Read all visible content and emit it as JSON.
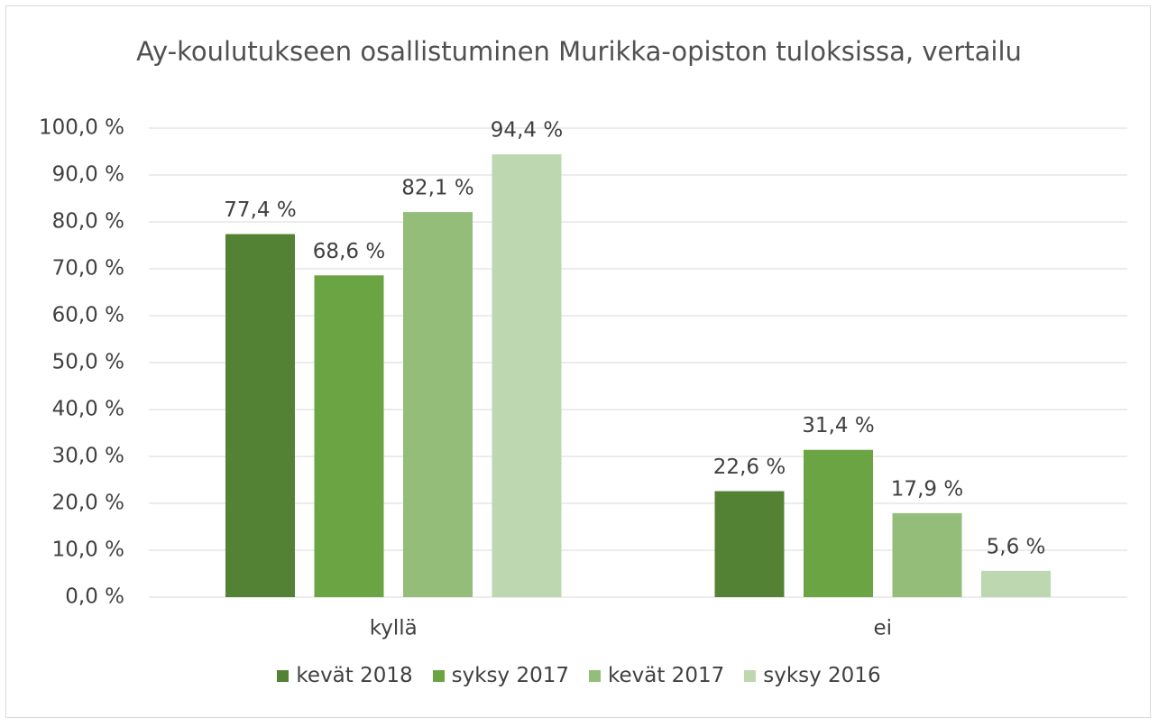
{
  "chart_data": {
    "type": "bar",
    "title": "Ay-koulutukseen osallistuminen Murikka-opiston tuloksissa, vertailu",
    "categories": [
      "kyllä",
      "ei"
    ],
    "series": [
      {
        "name": "kevät 2018",
        "color": "#548235",
        "values": [
          77.4,
          22.6
        ],
        "value_labels": [
          "77,4 %",
          "22,6 %"
        ]
      },
      {
        "name": "syksy 2017",
        "color": "#6aa443",
        "values": [
          68.6,
          31.4
        ],
        "value_labels": [
          "68,6 %",
          "31,4 %"
        ]
      },
      {
        "name": "kevät 2017",
        "color": "#93bd79",
        "values": [
          82.1,
          17.9
        ],
        "value_labels": [
          "82,1 %",
          "17,9 %"
        ]
      },
      {
        "name": "syksy 2016",
        "color": "#bdd7b1",
        "values": [
          94.4,
          5.6
        ],
        "value_labels": [
          "94,4 %",
          "5,6 %"
        ]
      }
    ],
    "ylim": [
      0,
      100
    ],
    "yticks": [
      {
        "value": 0,
        "label": "0,0 %"
      },
      {
        "value": 10,
        "label": "10,0 %"
      },
      {
        "value": 20,
        "label": "20,0 %"
      },
      {
        "value": 30,
        "label": "30,0 %"
      },
      {
        "value": 40,
        "label": "40,0 %"
      },
      {
        "value": 50,
        "label": "50,0 %"
      },
      {
        "value": 60,
        "label": "60,0 %"
      },
      {
        "value": 70,
        "label": "70,0 %"
      },
      {
        "value": 80,
        "label": "80,0 %"
      },
      {
        "value": 90,
        "label": "90,0 %"
      },
      {
        "value": 100,
        "label": "100,0 %"
      }
    ],
    "grid": true,
    "legend": "bottom"
  }
}
